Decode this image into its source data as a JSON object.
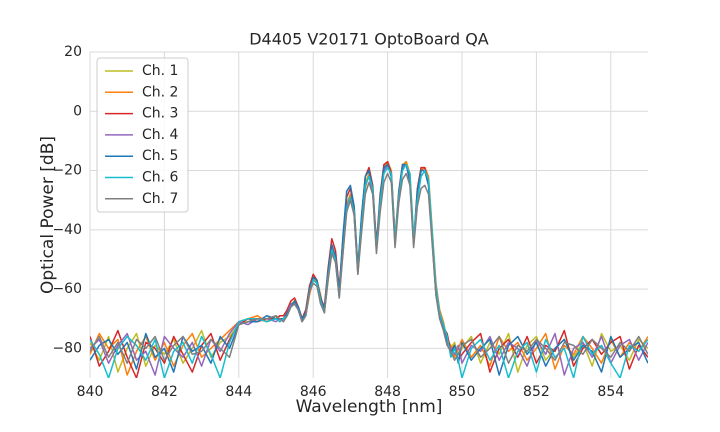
{
  "chart_data": {
    "type": "line",
    "title": "D4405 V20171 OptoBoard QA",
    "x_label": "Wavelength [nm]",
    "y_label": "Optical Power [dB]",
    "x": [
      840,
      840.25,
      840.5,
      840.75,
      841,
      841.25,
      841.5,
      841.75,
      842,
      842.25,
      842.5,
      842.75,
      843,
      843.25,
      843.5,
      843.75,
      844,
      844.25,
      844.5,
      844.75,
      845,
      845.1,
      845.2,
      845.3,
      845.4,
      845.5,
      845.6,
      845.7,
      845.8,
      845.9,
      846,
      846.1,
      846.2,
      846.3,
      846.4,
      846.5,
      846.6,
      846.7,
      846.8,
      846.9,
      847,
      847.1,
      847.2,
      847.3,
      847.4,
      847.5,
      847.6,
      847.7,
      847.8,
      847.9,
      848,
      848.1,
      848.2,
      848.3,
      848.4,
      848.5,
      848.6,
      848.7,
      848.8,
      848.9,
      849,
      849.1,
      849.2,
      849.3,
      849.4,
      849.5,
      849.6,
      849.7,
      849.8,
      849.9,
      850,
      850.25,
      850.5,
      850.75,
      851,
      851.25,
      851.5,
      851.75,
      852,
      852.25,
      852.5,
      852.75,
      853,
      853.25,
      853.5,
      853.75,
      854,
      854.25,
      854.5,
      854.75,
      855
    ],
    "series": [
      {
        "name": "Ch. 1",
        "color": "#bcbd22",
        "values": [
          -78,
          -84,
          -76,
          -88,
          -80,
          -75,
          -86,
          -79,
          -82,
          -77,
          -85,
          -80,
          -74,
          -83,
          -78,
          -76,
          -72,
          -71,
          -70,
          -71,
          -70,
          -70,
          -70,
          -68,
          -65,
          -64,
          -67,
          -71,
          -68,
          -60,
          -56,
          -58,
          -64,
          -67,
          -55,
          -46,
          -50,
          -62,
          -45,
          -31,
          -28,
          -35,
          -54,
          -38,
          -24,
          -21,
          -27,
          -46,
          -30,
          -19,
          -17,
          -22,
          -44,
          -28,
          -18,
          -17,
          -23,
          -44,
          -27,
          -19,
          -19,
          -24,
          -42,
          -60,
          -68,
          -72,
          -76,
          -80,
          -78,
          -82,
          -80,
          -76,
          -85,
          -78,
          -82,
          -75,
          -88,
          -79,
          -76,
          -84,
          -80,
          -77,
          -83,
          -78,
          -86,
          -75,
          -81,
          -79,
          -84,
          -77,
          -80
        ]
      },
      {
        "name": "Ch. 2",
        "color": "#ff7f0e",
        "values": [
          -82,
          -75,
          -80,
          -77,
          -89,
          -81,
          -76,
          -84,
          -78,
          -86,
          -79,
          -75,
          -83,
          -80,
          -77,
          -74,
          -71,
          -70,
          -69,
          -71,
          -69,
          -71,
          -70,
          -69,
          -66,
          -64,
          -66,
          -70,
          -69,
          -62,
          -57,
          -57,
          -62,
          -68,
          -57,
          -47,
          -49,
          -60,
          -48,
          -33,
          -28,
          -32,
          -52,
          -40,
          -26,
          -21,
          -25,
          -45,
          -33,
          -20,
          -17,
          -20,
          -42,
          -31,
          -19,
          -17,
          -21,
          -43,
          -30,
          -20,
          -19,
          -22,
          -40,
          -58,
          -67,
          -71,
          -77,
          -79,
          -83,
          -80,
          -77,
          -83,
          -79,
          -86,
          -76,
          -81,
          -78,
          -84,
          -80,
          -75,
          -87,
          -79,
          -82,
          -76,
          -80,
          -85,
          -77,
          -83,
          -78,
          -81,
          -76
        ]
      },
      {
        "name": "Ch. 3",
        "color": "#d62728",
        "values": [
          -76,
          -86,
          -81,
          -74,
          -83,
          -90,
          -78,
          -80,
          -85,
          -76,
          -82,
          -88,
          -79,
          -75,
          -84,
          -77,
          -72,
          -70,
          -71,
          -70,
          -70,
          -69,
          -69,
          -67,
          -64,
          -63,
          -66,
          -70,
          -67,
          -59,
          -55,
          -57,
          -63,
          -66,
          -53,
          -43,
          -47,
          -60,
          -43,
          -29,
          -26,
          -33,
          -53,
          -36,
          -22,
          -19,
          -25,
          -45,
          -28,
          -18,
          -17,
          -21,
          -43,
          -27,
          -18,
          -18,
          -23,
          -44,
          -26,
          -19,
          -19,
          -24,
          -43,
          -61,
          -69,
          -73,
          -75,
          -81,
          -79,
          -84,
          -82,
          -78,
          -75,
          -88,
          -80,
          -77,
          -83,
          -76,
          -85,
          -79,
          -81,
          -74,
          -86,
          -80,
          -77,
          -82,
          -78,
          -76,
          -87,
          -79,
          -83
        ]
      },
      {
        "name": "Ch. 4",
        "color": "#9467bd",
        "values": [
          -80,
          -77,
          -85,
          -79,
          -75,
          -84,
          -81,
          -89,
          -76,
          -80,
          -83,
          -78,
          -86,
          -77,
          -81,
          -75,
          -71,
          -72,
          -70,
          -70,
          -71,
          -70,
          -71,
          -68,
          -65,
          -65,
          -67,
          -71,
          -68,
          -61,
          -57,
          -58,
          -65,
          -67,
          -56,
          -47,
          -51,
          -62,
          -46,
          -32,
          -29,
          -35,
          -55,
          -39,
          -25,
          -22,
          -27,
          -47,
          -31,
          -20,
          -18,
          -22,
          -45,
          -29,
          -19,
          -18,
          -24,
          -45,
          -28,
          -20,
          -20,
          -25,
          -43,
          -61,
          -69,
          -72,
          -78,
          -80,
          -82,
          -79,
          -85,
          -79,
          -81,
          -76,
          -84,
          -78,
          -80,
          -86,
          -77,
          -82,
          -75,
          -89,
          -80,
          -78,
          -83,
          -76,
          -85,
          -79,
          -77,
          -84,
          -78
        ]
      },
      {
        "name": "Ch. 5",
        "color": "#1f77b4",
        "values": [
          -84,
          -79,
          -77,
          -82,
          -78,
          -87,
          -75,
          -83,
          -80,
          -88,
          -76,
          -81,
          -79,
          -85,
          -76,
          -80,
          -72,
          -71,
          -71,
          -69,
          -70,
          -70,
          -70,
          -68,
          -66,
          -64,
          -66,
          -70,
          -68,
          -60,
          -56,
          -57,
          -63,
          -67,
          -54,
          -45,
          -49,
          -61,
          -42,
          -27,
          -25,
          -32,
          -53,
          -35,
          -22,
          -20,
          -26,
          -46,
          -29,
          -19,
          -18,
          -22,
          -44,
          -28,
          -18,
          -18,
          -23,
          -45,
          -27,
          -20,
          -20,
          -25,
          -44,
          -62,
          -70,
          -73,
          -77,
          -82,
          -79,
          -85,
          -78,
          -84,
          -80,
          -77,
          -89,
          -79,
          -76,
          -82,
          -78,
          -86,
          -80,
          -77,
          -84,
          -79,
          -81,
          -88,
          -76,
          -83,
          -80,
          -78,
          -85
        ]
      },
      {
        "name": "Ch. 6",
        "color": "#17becf",
        "values": [
          -77,
          -82,
          -90,
          -80,
          -76,
          -79,
          -84,
          -77,
          -90,
          -81,
          -78,
          -85,
          -76,
          -82,
          -90,
          -78,
          -71,
          -70,
          -70,
          -71,
          -70,
          -71,
          -70,
          -69,
          -66,
          -65,
          -67,
          -71,
          -69,
          -61,
          -57,
          -58,
          -64,
          -68,
          -56,
          -47,
          -50,
          -63,
          -47,
          -33,
          -29,
          -34,
          -54,
          -39,
          -25,
          -22,
          -26,
          -47,
          -31,
          -21,
          -19,
          -21,
          -43,
          -29,
          -20,
          -18,
          -21,
          -42,
          -30,
          -22,
          -20,
          -23,
          -41,
          -59,
          -68,
          -72,
          -76,
          -83,
          -80,
          -84,
          -90,
          -80,
          -77,
          -84,
          -79,
          -90,
          -81,
          -78,
          -88,
          -77,
          -83,
          -80,
          -90,
          -76,
          -82,
          -79,
          -85,
          -90,
          -79,
          -81,
          -77
        ]
      },
      {
        "name": "Ch. 7",
        "color": "#7f7f7f",
        "values": [
          -81,
          -76,
          -83,
          -78,
          -85,
          -77,
          -80,
          -76,
          -84,
          -79,
          -76,
          -82,
          -81,
          -77,
          -80,
          -83,
          -72,
          -71,
          -70,
          -70,
          -69,
          -70,
          -71,
          -69,
          -66,
          -65,
          -67,
          -71,
          -69,
          -61,
          -58,
          -59,
          -65,
          -68,
          -57,
          -48,
          -51,
          -63,
          -48,
          -34,
          -30,
          -35,
          -55,
          -41,
          -28,
          -24,
          -28,
          -48,
          -34,
          -24,
          -21,
          -24,
          -46,
          -31,
          -23,
          -21,
          -25,
          -46,
          -32,
          -26,
          -25,
          -28,
          -45,
          -62,
          -70,
          -74,
          -79,
          -81,
          -84,
          -82,
          -79,
          -77,
          -83,
          -80,
          -76,
          -85,
          -79,
          -81,
          -77,
          -80,
          -84,
          -78,
          -79,
          -82,
          -77,
          -80,
          -83,
          -78,
          -81,
          -76,
          -82
        ]
      }
    ],
    "xlim": [
      840,
      855
    ],
    "xticks": [
      840,
      842,
      844,
      846,
      848,
      850,
      852,
      854
    ],
    "ylim": [
      -90,
      20
    ],
    "yticks": [
      {
        "value": -80,
        "label": "−80"
      },
      {
        "value": -60,
        "label": "−60"
      },
      {
        "value": -40,
        "label": "−40"
      },
      {
        "value": -20,
        "label": "−20"
      },
      0,
      20
    ],
    "grid": true,
    "legend": "upper left"
  }
}
